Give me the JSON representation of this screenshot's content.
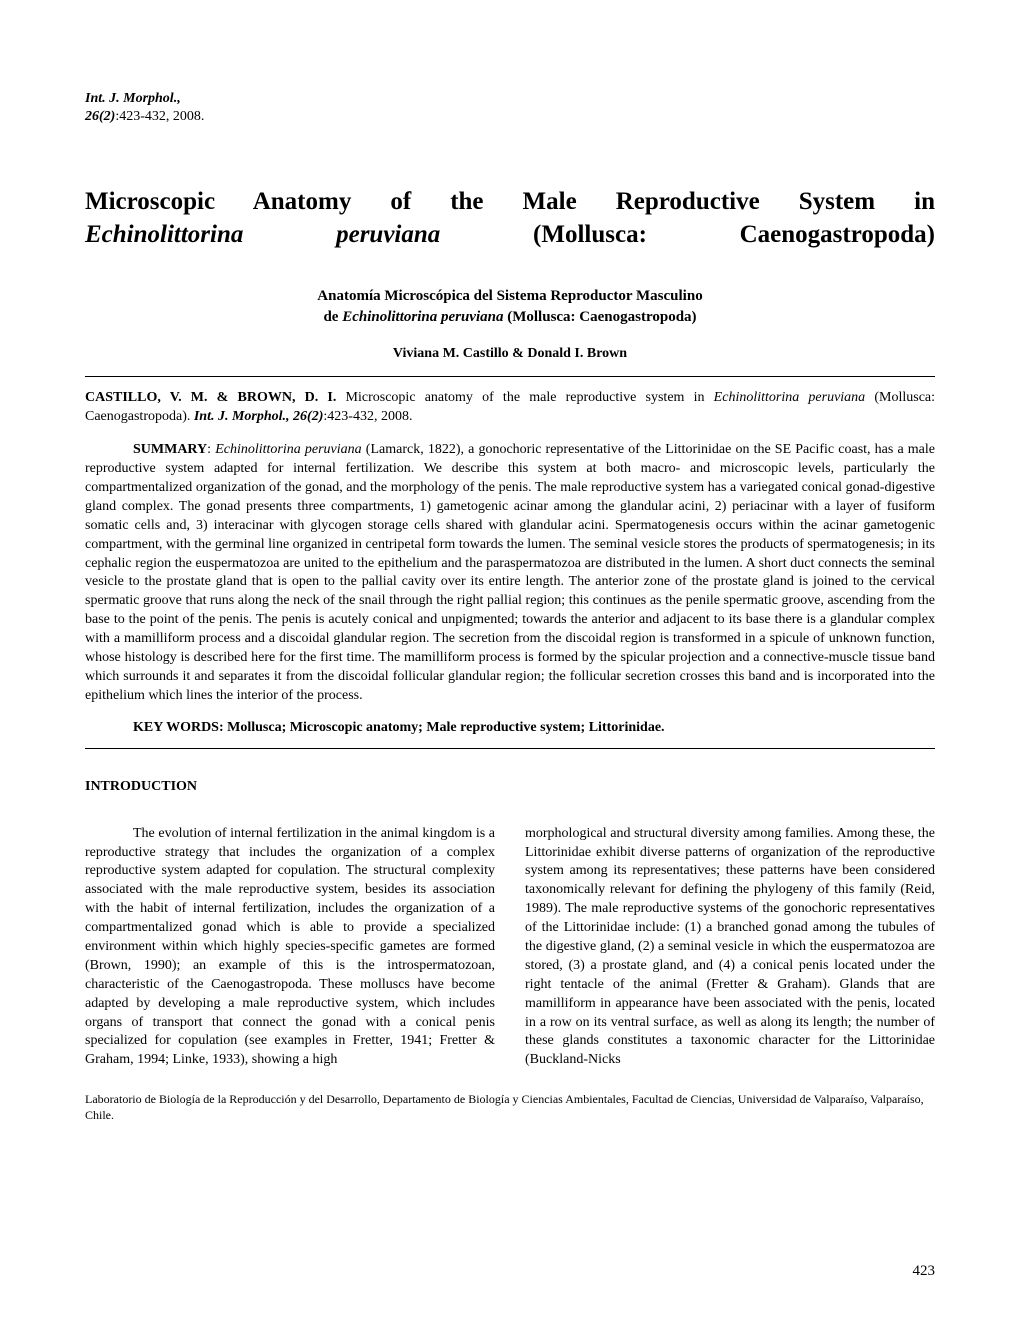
{
  "journal": {
    "name": "Int. J. Morphol.,",
    "issue": "26(2)",
    "pages": ":423-432, 2008."
  },
  "title": {
    "line1_plain": "Microscopic Anatomy of the Male Reproductive System in",
    "line2_italic": "Echinolittorina peruviana",
    "line2_plain": " (Mollusca: Caenogastropoda)"
  },
  "subtitle": {
    "line1": "Anatomía Microscópica del Sistema Reproductor Masculino",
    "line2_plain_pre": "de ",
    "line2_italic": "Echinolittorina peruviana",
    "line2_plain_post": " (Mollusca: Caenogastropoda)"
  },
  "authors": "Viviana M. Castillo & Donald I. Brown",
  "citation": {
    "authors": "CASTILLO, V. M. & BROWN, D. I.",
    "text1": " Microscopic anatomy of the male reproductive system in ",
    "species": "Echinolittorina peruviana",
    "text2": " (Mollusca: Caenogastropoda). ",
    "journal": "Int. J. Morphol., 26(2)",
    "text3": ":423-432, 2008."
  },
  "summary": {
    "label": "SUMMARY",
    "colon": ": ",
    "species": "Echinolittorina peruviana",
    "body": " (Lamarck, 1822), a gonochoric representative of the Littorinidae on the SE Pacific coast, has a male reproductive system adapted for internal fertilization. We describe this system at both macro- and microscopic levels, particularly the compartmentalized organization of the gonad, and the morphology of the penis. The male reproductive system has a variegated conical gonad-digestive gland complex. The gonad presents three compartments, 1) gametogenic acinar among the glandular acini, 2) periacinar with a layer of fusiform somatic cells and, 3) interacinar with glycogen storage cells shared with glandular acini. Spermatogenesis occurs within the acinar gametogenic compartment, with the germinal line organized in centripetal form towards the lumen. The seminal vesicle stores the products of spermatogenesis; in its cephalic region the euspermatozoa are united to the epithelium and the paraspermatozoa are distributed in the lumen. A short duct connects the seminal vesicle to the prostate gland that is open to the pallial cavity over its entire length. The anterior zone of the prostate gland is joined to the cervical spermatic groove that runs along the neck of the snail through the right pallial region; this continues as the penile spermatic groove, ascending from the base to the point of the penis. The penis is acutely conical and unpigmented; towards the anterior and adjacent to its base there is a glandular complex with a mamilliform process and a discoidal glandular region. The secretion from the discoidal region is transformed in a spicule of unknown function, whose histology is described here for the first time. The mamilliform process is formed by the spicular projection and a connective-muscle tissue band which surrounds it and separates it from the discoidal follicular glandular region; the follicular secretion crosses this band and is incorporated into the epithelium which lines the interior of the process."
  },
  "keywords": "KEY WORDS: Mollusca; Microscopic anatomy; Male reproductive system; Littorinidae.",
  "introduction": {
    "heading": "INTRODUCTION",
    "col1": "The evolution of internal fertilization in the animal kingdom is a reproductive strategy that includes the organization of a complex reproductive system adapted for copulation. The structural complexity associated with the male reproductive system, besides its association with the habit of internal fertilization, includes the organization of a compartmentalized gonad which is able to provide a specialized environment within which highly species-specific gametes are formed (Brown, 1990); an example of this is the introspermatozoan, characteristic of the Caenogastropoda. These molluscs have become adapted by developing a male reproductive system, which includes organs of transport that connect the gonad with a conical penis specialized for copulation (see examples in Fretter, 1941; Fretter & Graham, 1994; Linke, 1933), showing a high",
    "col2": "morphological and structural diversity among families. Among these, the Littorinidae exhibit diverse patterns of organization of the reproductive system among its representatives; these patterns have been considered taxonomically relevant for defining the phylogeny of this family (Reid, 1989). The male reproductive systems of the gonochoric representatives of the Littorinidae include: (1) a branched gonad among the tubules of the digestive gland, (2) a seminal vesicle in which the euspermatozoa are stored, (3) a prostate gland, and (4) a conical penis located under the right tentacle of the animal (Fretter & Graham). Glands that are mamilliform in appearance have been associated with the penis, located in a row on its ventral surface, as well as along its length; the number of these glands constitutes a taxonomic character for the Littorinidae (Buckland-Nicks"
  },
  "affiliation": "Laboratorio de Biología de la Reproducción y del Desarrollo, Departamento de Biología y Ciencias Ambientales, Facultad de Ciencias, Universidad de Valparaíso, Valparaíso, Chile.",
  "page_number": "423"
}
